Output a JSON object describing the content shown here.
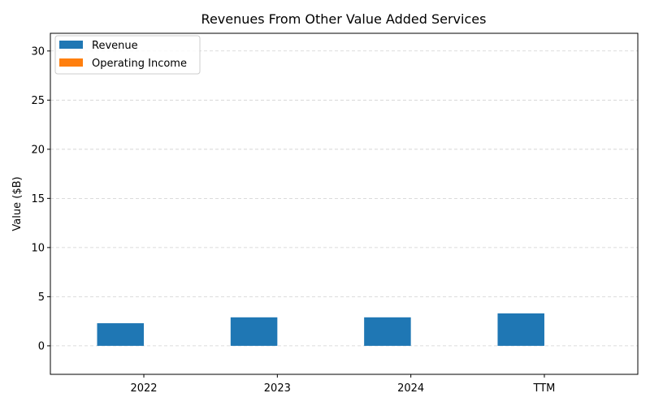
{
  "chart_data": {
    "type": "bar",
    "title": "Revenues From Other Value Added Services",
    "xlabel": "",
    "ylabel": "Value ($B)",
    "categories": [
      "2022",
      "2023",
      "2024",
      "TTM"
    ],
    "series": [
      {
        "name": "Revenue",
        "values": [
          2.3,
          2.9,
          2.9,
          3.3
        ],
        "color": "#1f77b4"
      },
      {
        "name": "Operating Income",
        "values": [
          0,
          0,
          0,
          0
        ],
        "color": "#ff7f0e"
      }
    ],
    "ylim": [
      -2.9,
      31.8
    ],
    "yticks": [
      0,
      5,
      10,
      15,
      20,
      25,
      30
    ],
    "grid": true,
    "legend_position": "top-left"
  }
}
